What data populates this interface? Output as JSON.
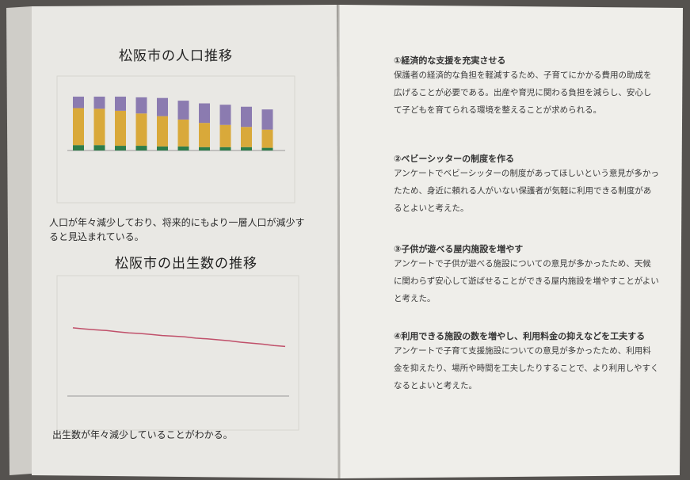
{
  "left_page": {
    "population_title": "松阪市の人口推移",
    "population_text": "人口が年々減少しており、将来的にもより一層人口が減少すると見込まれている。",
    "births_title": "松阪市の出生数の推移",
    "births_text": "出生数が年々減少していることがわかる。",
    "bar_chart": {
      "ylim": [
        0,
        100
      ],
      "series": [
        {
          "color": "#2e7d4a",
          "values": [
            8,
            8,
            7,
            7,
            6,
            6,
            5,
            5,
            5,
            4
          ]
        },
        {
          "color": "#d9a93a",
          "values": [
            55,
            54,
            52,
            48,
            45,
            40,
            36,
            33,
            30,
            27
          ]
        },
        {
          "color": "#8b7bb0",
          "values": [
            17,
            18,
            21,
            24,
            27,
            28,
            29,
            30,
            30,
            30
          ]
        }
      ]
    },
    "line_chart": {
      "ylim": [
        0,
        2500
      ],
      "color": "#c0506a",
      "values": [
        2050,
        2020,
        1990,
        1970,
        1930,
        1900,
        1880,
        1850,
        1820,
        1800,
        1780,
        1740,
        1720,
        1690,
        1660,
        1620,
        1590,
        1560,
        1520,
        1490
      ]
    }
  },
  "right_page": {
    "sections": [
      {
        "heading": "①経済的な支援を充実させる",
        "text": "保護者の経済的な負担を軽減するため、子育てにかかる費用の助成を広げることが必要である。出産や育児に関わる負担を減らし、安心して子どもを育てられる環境を整えることが求められる。"
      },
      {
        "heading": "②ベビーシッターの制度を作る",
        "text": "アンケートでベビーシッターの制度があってほしいという意見が多かったため、身近に頼れる人がいない保護者が気軽に利用できる制度があるとよいと考えた。"
      },
      {
        "heading": "③子供が遊べる屋内施設を増やす",
        "text": "アンケートで子供が遊べる施設についての意見が多かったため、天候に関わらず安心して遊ばせることができる屋内施設を増やすことがよいと考えた。"
      },
      {
        "heading": "④利用できる施設の数を増やし、利用料金の抑えなどを工夫する",
        "text": "アンケートで子育て支援施設についての意見が多かったため、利用料金を抑えたり、場所や時間を工夫したりすることで、より利用しやすくなるとよいと考えた。"
      }
    ]
  }
}
